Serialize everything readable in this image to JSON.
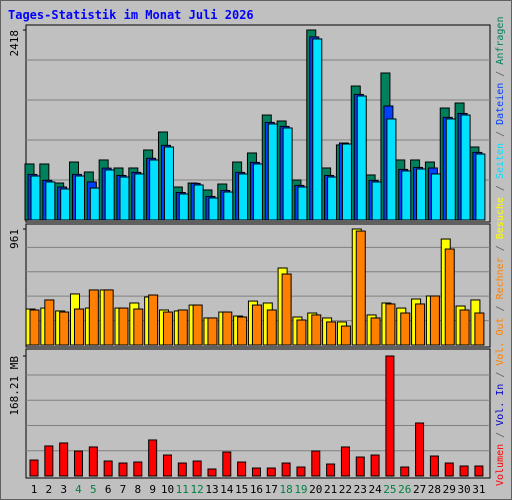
{
  "title": "Tages-Statistik im Monat Juli 2026",
  "legend": {
    "separator": "/"
  },
  "chart_data": [
    {
      "type": "bar",
      "ylim": [
        0,
        2418
      ],
      "yticks": [
        2418
      ],
      "series": [
        {
          "name": "Anfragen",
          "color": "#00805c",
          "values": [
            713,
            713,
            471,
            738,
            611,
            764,
            662,
            662,
            891,
            1120,
            420,
            471,
            382,
            458,
            738,
            853,
            1336,
            1260,
            509,
            2418,
            662,
            955,
            1705,
            573,
            1871,
            764,
            764,
            738,
            1425,
            1489,
            929
          ]
        },
        {
          "name": "Dateien",
          "color": "#0040ff",
          "values": [
            580,
            505,
            420,
            580,
            484,
            660,
            567,
            606,
            785,
            950,
            350,
            466,
            300,
            376,
            606,
            733,
            1242,
            1191,
            440,
            2330,
            567,
            980,
            1598,
            504,
            1451,
            644,
            669,
            662,
            1306,
            1356,
            860
          ]
        },
        {
          "name": "Seiten",
          "color": "#00e0ff",
          "values": [
            560,
            484,
            395,
            560,
            407,
            637,
            547,
            586,
            764,
            929,
            331,
            446,
            280,
            356,
            586,
            713,
            1222,
            1171,
            420,
            2304,
            547,
            967,
            1578,
            484,
            1286,
            624,
            649,
            586,
            1286,
            1336,
            840
          ]
        }
      ]
    },
    {
      "type": "bar",
      "ylim": [
        0,
        961
      ],
      "yticks": [
        961
      ],
      "series": [
        {
          "name": "Besuche",
          "color": "#ffff00",
          "values": [
            298,
            306,
            282,
            423,
            306,
            456,
            306,
            348,
            398,
            290,
            282,
            331,
            224,
            273,
            240,
            364,
            348,
            638,
            232,
            265,
            224,
            191,
            961,
            249,
            348,
            306,
            381,
            406,
            878,
            323,
            373
          ]
        },
        {
          "name": "Rechner",
          "color": "#ff8000",
          "values": [
            290,
            373,
            273,
            298,
            456,
            456,
            306,
            298,
            414,
            273,
            290,
            331,
            224,
            273,
            232,
            331,
            290,
            588,
            207,
            249,
            191,
            157,
            944,
            224,
            340,
            265,
            340,
            406,
            795,
            290,
            265
          ]
        }
      ]
    },
    {
      "type": "bar",
      "ylim": [
        0,
        168.21
      ],
      "yticks": [
        {
          "value": 168.21,
          "label": "168.21 MB"
        }
      ],
      "categories": [
        "1",
        "2",
        "3",
        "4",
        "5",
        "6",
        "7",
        "8",
        "9",
        "10",
        "11",
        "12",
        "13",
        "14",
        "15",
        "16",
        "17",
        "18",
        "19",
        "20",
        "21",
        "22",
        "23",
        "24",
        "25",
        "26",
        "27",
        "28",
        "29",
        "30",
        "31"
      ],
      "category_colors": [
        "#000000",
        "#000000",
        "#000000",
        "#008040",
        "#008040",
        "#000000",
        "#000000",
        "#000000",
        "#000000",
        "#000000",
        "#008040",
        "#008040",
        "#000000",
        "#000000",
        "#000000",
        "#000000",
        "#000000",
        "#008040",
        "#008040",
        "#000000",
        "#000000",
        "#000000",
        "#000000",
        "#000000",
        "#008040",
        "#008040",
        "#000000",
        "#000000",
        "#000000",
        "#000000",
        "#000000"
      ],
      "series": [
        {
          "name": "Volumen",
          "color": "#ff0000",
          "values": [
            22.4,
            42.1,
            46.3,
            35.0,
            40.7,
            21.0,
            18.2,
            19.6,
            50.5,
            29.4,
            18.2,
            21.0,
            9.8,
            33.6,
            19.6,
            11.2,
            11.2,
            18.2,
            12.6,
            35.0,
            16.8,
            40.7,
            26.6,
            29.4,
            168.21,
            12.6,
            74.3,
            28.0,
            18.2,
            14.0,
            14.0
          ]
        }
      ],
      "legend_only": [
        {
          "name": "Vol. In",
          "color": "#0000c0"
        },
        {
          "name": "Vol. Out",
          "color": "#ff8000"
        }
      ]
    }
  ]
}
